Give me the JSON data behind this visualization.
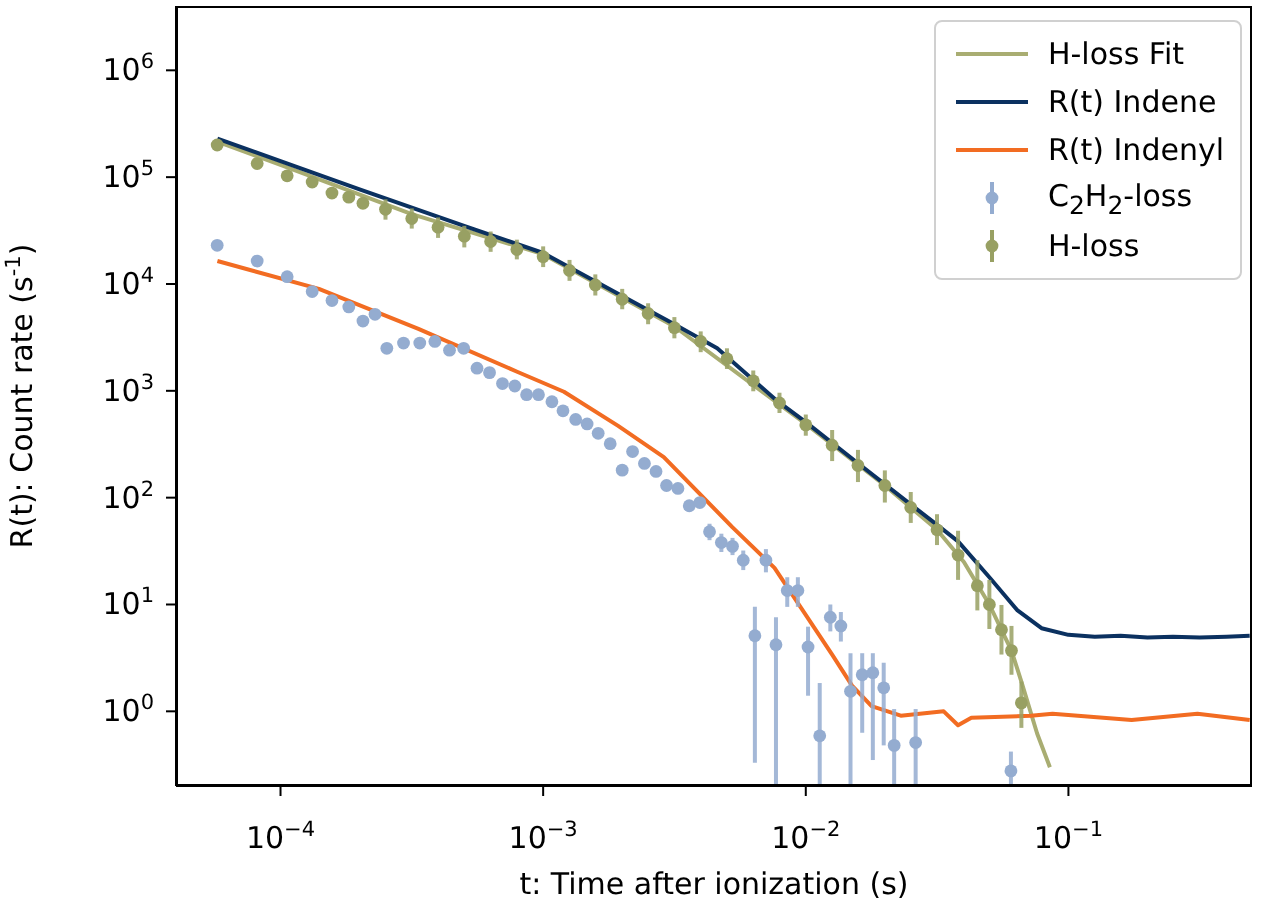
{
  "chart_data": {
    "type": "line",
    "xlabel": "t: Time after ionization (s)",
    "ylabel": "R(t): Count rate (s$^{-1}$)",
    "log": "xy",
    "grid": false,
    "legend": "top right",
    "xlim": [
      4e-05,
      0.5
    ],
    "ylim": [
      0.2,
      4000000
    ],
    "xticks": [
      {
        "value": 0.0001,
        "label": "10$^{−4}$"
      },
      {
        "value": 0.001,
        "label": "10$^{−3}$"
      },
      {
        "value": 0.01,
        "label": "10$^{−2}$"
      },
      {
        "value": 0.1,
        "label": "10$^{−1}$"
      }
    ],
    "yticks": [
      {
        "value": 1,
        "label": "10$^{0}$"
      },
      {
        "value": 10,
        "label": "10$^{1}$"
      },
      {
        "value": 100,
        "label": "10$^{2}$"
      },
      {
        "value": 1000,
        "label": "10$^{3}$"
      },
      {
        "value": 10000,
        "label": "10$^{4}$"
      },
      {
        "value": 100000,
        "label": "10$^{5}$"
      },
      {
        "value": 1000000,
        "label": "10$^{6}$"
      }
    ],
    "series": [
      {
        "name": "H-loss Fit",
        "color": "#a9ad72",
        "x": [
          5.74e-05,
          0.0001,
          0.000316,
          0.001,
          0.00316,
          0.01,
          0.02,
          0.0316,
          0.04,
          0.05,
          0.0556,
          0.0607,
          0.0662,
          0.076,
          0.085
        ],
        "values": [
          215000,
          130000,
          45000,
          19000,
          4000,
          490,
          130,
          50,
          25,
          10,
          5.8,
          3.7,
          1.9,
          0.62,
          0.3
        ]
      },
      {
        "name": "R(t) Indene",
        "color": "#0b3160",
        "x": [
          5.75e-05,
          0.0001,
          0.0002,
          0.0005,
          0.001,
          0.002,
          0.00316,
          0.0046,
          0.0078,
          0.01,
          0.0158,
          0.025,
          0.0318,
          0.038,
          0.05,
          0.064,
          0.079,
          0.1,
          0.126,
          0.158,
          0.2,
          0.25,
          0.316,
          0.4,
          0.49
        ],
        "values": [
          230000,
          141000,
          77000,
          35000,
          19500,
          7700,
          4200,
          2500,
          800,
          510,
          210,
          87,
          55,
          39,
          18,
          8.8,
          6.0,
          5.2,
          5.0,
          5.1,
          4.9,
          5.0,
          4.9,
          5.0,
          5.1
        ]
      },
      {
        "name": "R(t) Indenyl",
        "color": "#f26c22",
        "x": [
          5.75e-05,
          0.00014,
          0.000335,
          0.0008,
          0.0012,
          0.00193,
          0.00288,
          0.00525,
          0.0076,
          0.0126,
          0.015,
          0.0178,
          0.023,
          0.0335,
          0.038,
          0.0427,
          0.072,
          0.087,
          0.174,
          0.31,
          0.49
        ],
        "values": [
          16400,
          9000,
          3800,
          1500,
          980,
          470,
          240,
          53,
          22,
          3.4,
          1.74,
          1.12,
          0.91,
          1.0,
          0.74,
          0.87,
          0.91,
          0.95,
          0.83,
          0.95,
          0.83
        ]
      },
      {
        "name": "C$_{2}$H$_{2}$-loss",
        "type": "scatter",
        "marker": "circle",
        "color": "#94acd0",
        "x": [
          5.74e-05,
          8.15e-05,
          0.000106,
          0.000132,
          0.000157,
          0.000182,
          0.000206,
          0.000229,
          0.000254,
          0.000294,
          0.000339,
          0.000387,
          0.00044,
          0.000498,
          0.00056,
          0.000625,
          0.0007,
          0.00078,
          0.000865,
          0.00096,
          0.00108,
          0.00119,
          0.00133,
          0.00147,
          0.00162,
          0.0018,
          0.002,
          0.00219,
          0.00243,
          0.00269,
          0.00295,
          0.00326,
          0.0036,
          0.00395,
          0.0043,
          0.00477,
          0.00526,
          0.00578,
          0.0064,
          0.00705,
          0.0077,
          0.0085,
          0.00933,
          0.0102,
          0.0113,
          0.0124,
          0.0136,
          0.0148,
          0.0164,
          0.018,
          0.0198,
          0.0217,
          0.0262,
          0.0604
        ],
        "values": [
          23000,
          16400,
          11700,
          8500,
          7000,
          6100,
          4500,
          5200,
          2500,
          2800,
          2800,
          2900,
          2400,
          2500,
          1630,
          1480,
          1170,
          1110,
          920,
          920,
          790,
          650,
          540,
          490,
          400,
          320,
          181,
          270,
          209,
          176,
          130,
          122,
          84,
          90,
          48,
          38,
          35,
          26,
          5.1,
          26,
          4.2,
          13.5,
          13.5,
          4.0,
          0.59,
          7.6,
          6.3,
          1.54,
          2.2,
          2.3,
          1.66,
          0.48,
          0.51,
          0.277
        ],
        "errors": [
          null,
          null,
          null,
          null,
          null,
          null,
          null,
          null,
          null,
          null,
          null,
          null,
          null,
          null,
          null,
          null,
          null,
          null,
          null,
          null,
          null,
          null,
          null,
          null,
          null,
          null,
          null,
          null,
          null,
          null,
          null,
          null,
          null,
          null,
          [
            40,
            57
          ],
          [
            31,
            46
          ],
          [
            29,
            42
          ],
          [
            21,
            32
          ],
          [
            0.33,
            9.5
          ],
          [
            20,
            33
          ],
          [
            0.2,
            7.6
          ],
          [
            9.5,
            18
          ],
          [
            9.5,
            18
          ],
          [
            1.4,
            6.2
          ],
          [
            0.2,
            1.84
          ],
          [
            5.6,
            10
          ],
          [
            4.5,
            8.5
          ],
          [
            0.2,
            3.5
          ],
          [
            0.63,
            3.5
          ],
          [
            0.35,
            3.5
          ],
          [
            0.48,
            2.85
          ],
          [
            0.2,
            1.05
          ],
          [
            0.2,
            1.05
          ],
          [
            0.2,
            0.42
          ]
        ]
      },
      {
        "name": "H-loss",
        "type": "scatter",
        "marker": "circle",
        "color": "#98a063",
        "x": [
          5.74e-05,
          8.15e-05,
          0.000106,
          0.000132,
          0.000157,
          0.000182,
          0.000206,
          0.000251,
          0.000316,
          0.000398,
          0.000501,
          0.000631,
          0.000794,
          0.001,
          0.00126,
          0.00158,
          0.002,
          0.00251,
          0.00316,
          0.00398,
          0.00501,
          0.00631,
          0.00794,
          0.01,
          0.0126,
          0.0158,
          0.02,
          0.0251,
          0.0316,
          0.038,
          0.045,
          0.05,
          0.0556,
          0.0607,
          0.0662
        ],
        "values": [
          200000,
          134000,
          103000,
          90000,
          71000,
          65000,
          57000,
          50000,
          41000,
          34000,
          28000,
          25000,
          21000,
          18000,
          13400,
          9800,
          7200,
          5300,
          3900,
          2900,
          2000,
          1240,
          770,
          480,
          310,
          200,
          130,
          81,
          50,
          29,
          15,
          10,
          5.8,
          3.7,
          1.2
        ],
        "errors": [
          [
            179000,
            224000
          ],
          [
            120000,
            150000
          ],
          [
            92000,
            115000
          ],
          [
            80000,
            101000
          ],
          [
            63000,
            80000
          ],
          [
            58000,
            73000
          ],
          [
            51000,
            64000
          ],
          [
            40000,
            62000
          ],
          [
            33000,
            51000
          ],
          [
            27000,
            42000
          ],
          [
            22000,
            35000
          ],
          [
            20000,
            31000
          ],
          [
            17000,
            26000
          ],
          [
            14400,
            22500
          ],
          [
            10700,
            16800
          ],
          [
            7800,
            12300
          ],
          [
            5800,
            9000
          ],
          [
            4200,
            6600
          ],
          [
            3100,
            4900
          ],
          [
            2300,
            3600
          ],
          [
            1600,
            2500
          ],
          [
            990,
            1550
          ],
          [
            620,
            960
          ],
          [
            380,
            600
          ],
          [
            220,
            430
          ],
          [
            140,
            280
          ],
          [
            90,
            180
          ],
          [
            58,
            113
          ],
          [
            36,
            70
          ],
          [
            17,
            49
          ],
          [
            8.8,
            26
          ],
          [
            5.9,
            17
          ],
          [
            3.4,
            9.9
          ],
          [
            2.2,
            6.3
          ],
          [
            0.7,
            1.9
          ]
        ]
      }
    ]
  }
}
